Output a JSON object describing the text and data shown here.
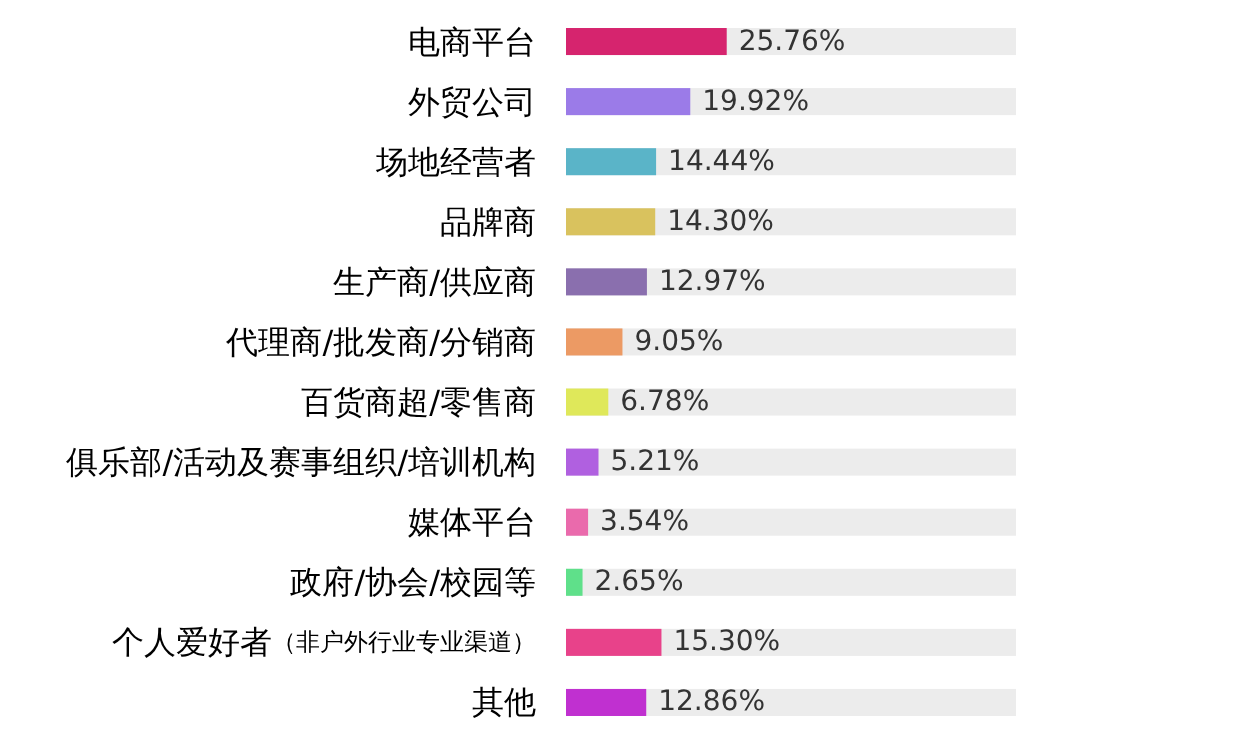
{
  "chart_data": {
    "type": "bar",
    "orientation": "horizontal",
    "value_labels": [
      "25.76%",
      "19.92%",
      "14.44%",
      "14.30%",
      "12.97%",
      "9.05%",
      "6.78%",
      "5.21%",
      "3.54%",
      "2.65%",
      "15.30%",
      "12.86%"
    ],
    "categories": [
      "电商平台",
      "外贸公司",
      "场地经营者",
      "品牌商",
      "生产商/供应商",
      "代理商/批发商/分销商",
      "百货商超/零售商",
      "俱乐部/活动及赛事组织/培训机构",
      "媒体平台",
      "政府/协会/校园等",
      "个人爱好者（非户外行业专业渠道）",
      "其他"
    ],
    "values": [
      25.76,
      19.92,
      14.44,
      14.3,
      12.97,
      9.05,
      6.78,
      5.21,
      3.54,
      2.65,
      15.3,
      12.86
    ],
    "colors": [
      "#d6246e",
      "#9b7be8",
      "#5ab4c8",
      "#d9c25e",
      "#8a6fae",
      "#ec9a64",
      "#dfe85a",
      "#b060e0",
      "#ea6aac",
      "#5fe08a",
      "#e8428a",
      "#c030d0"
    ]
  }
}
